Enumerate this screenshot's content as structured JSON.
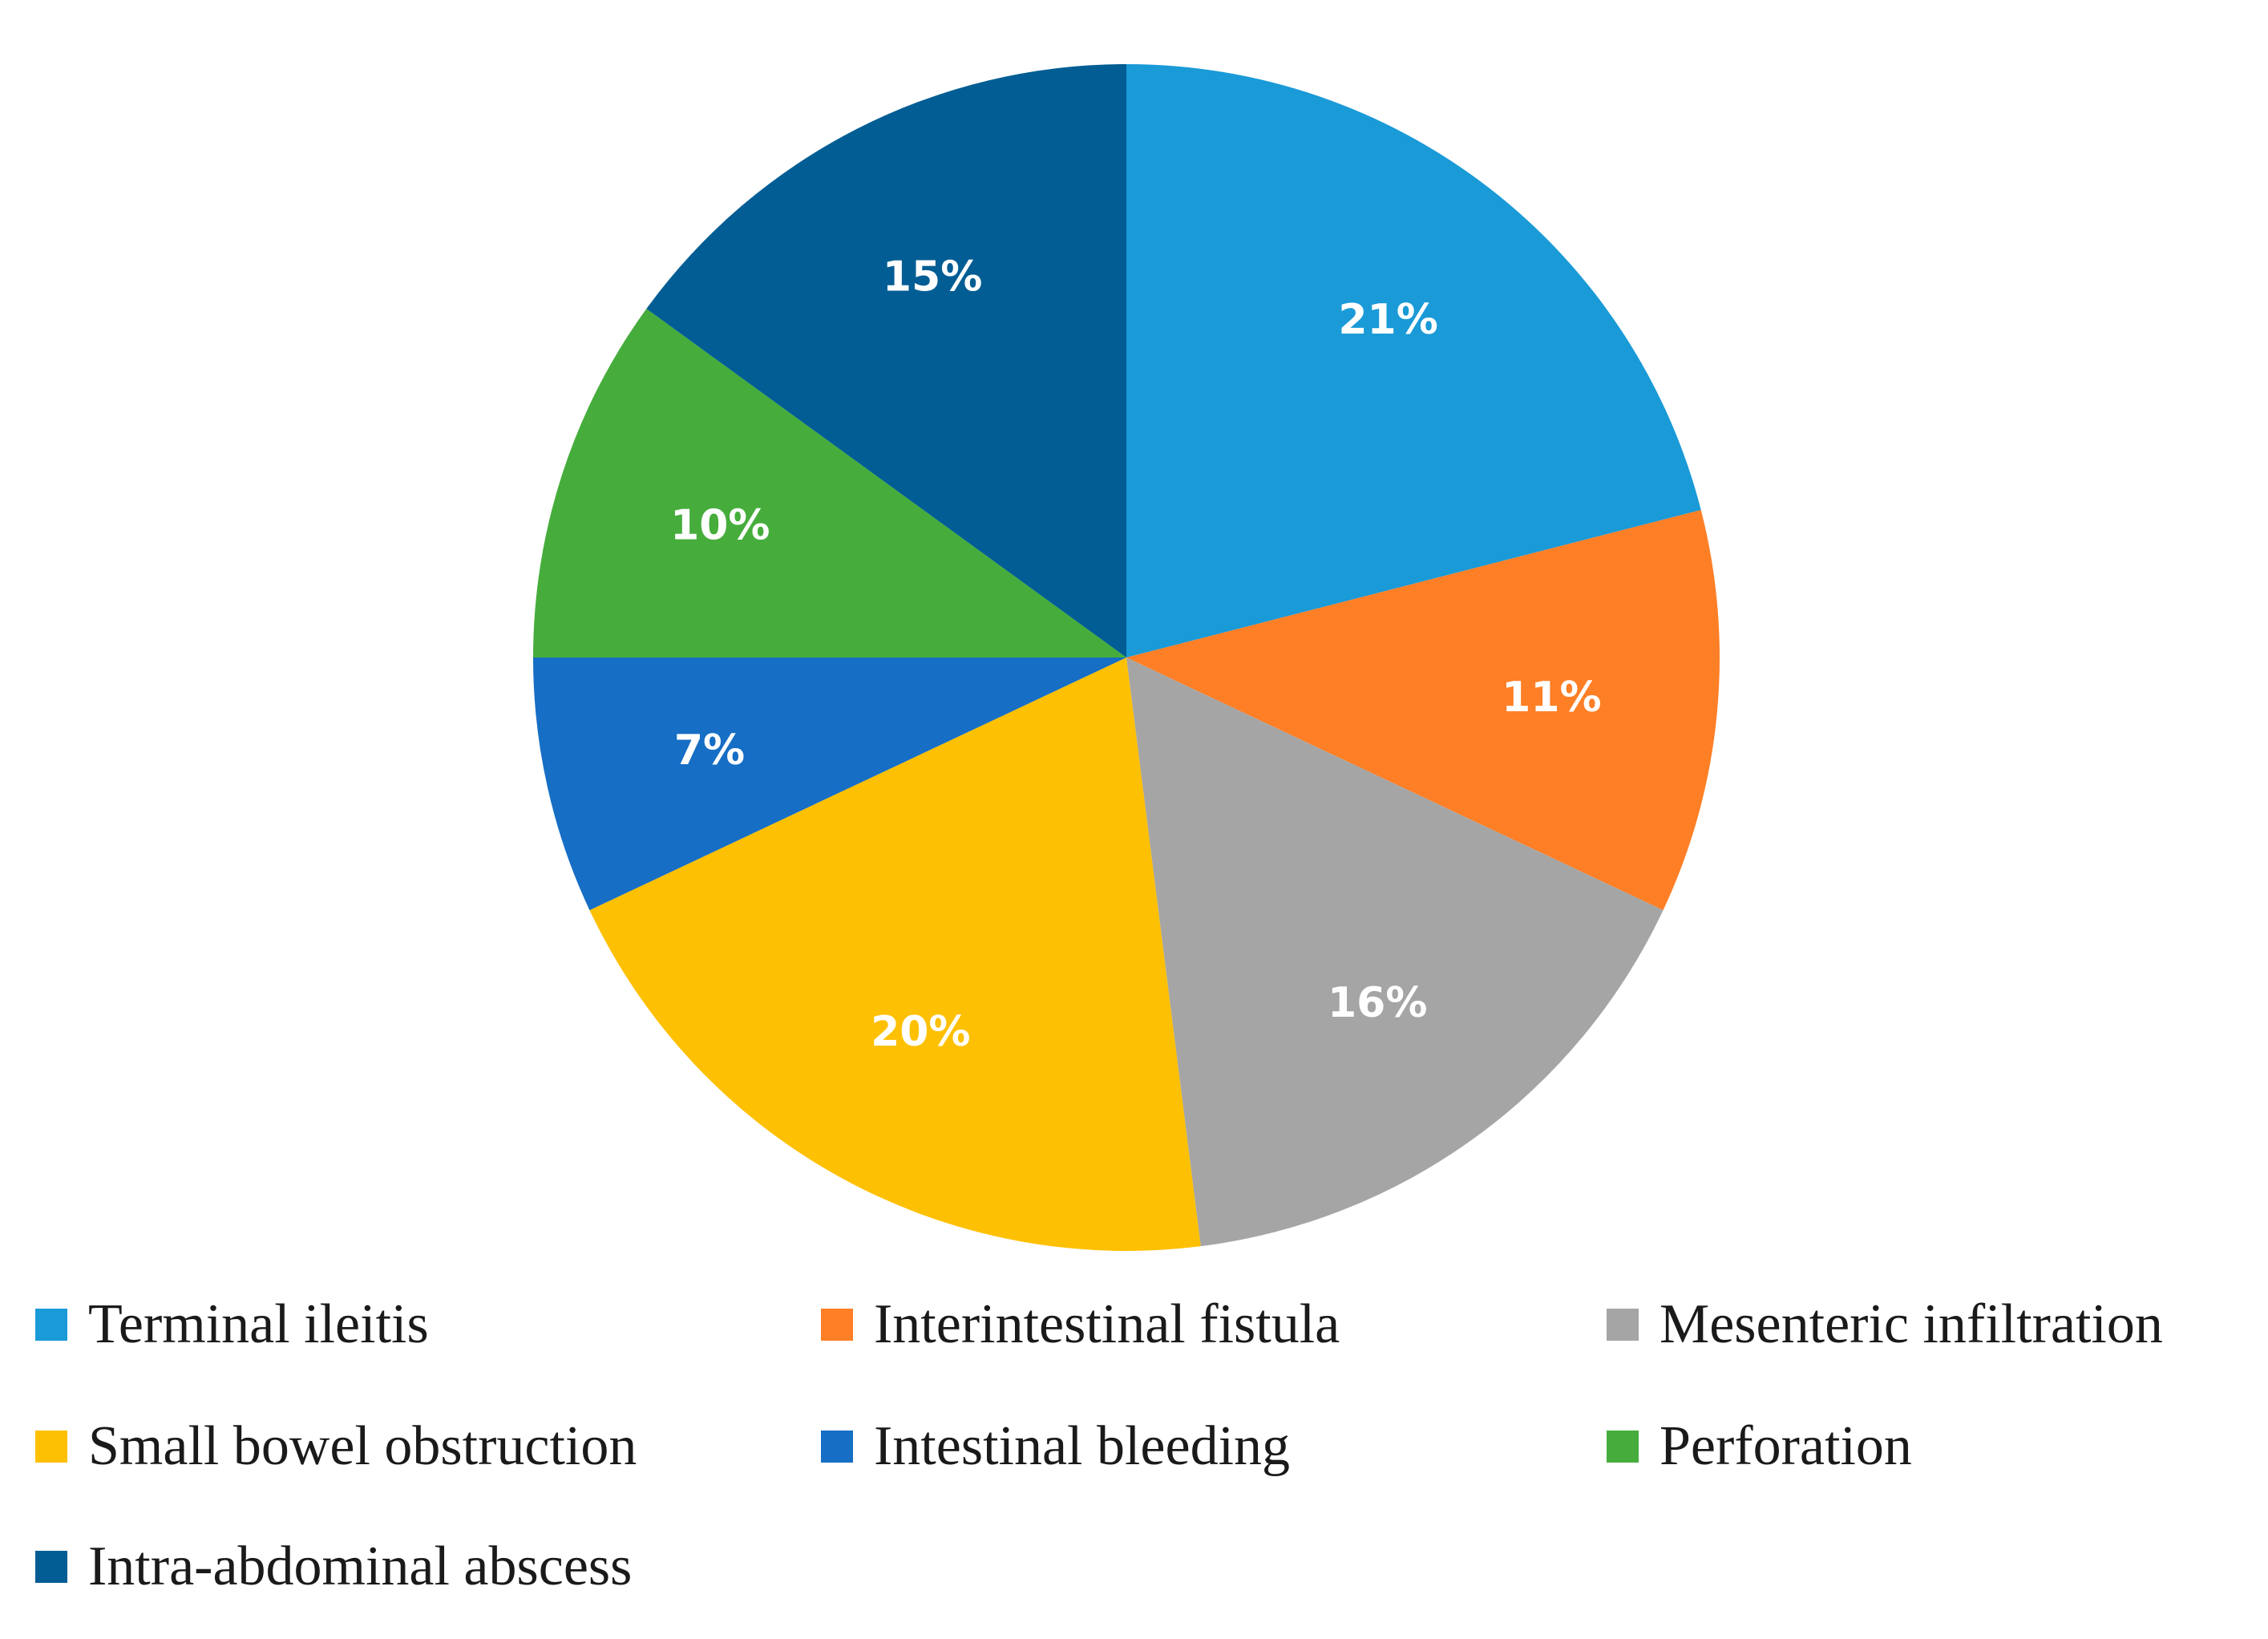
{
  "chart_data": {
    "type": "pie",
    "title": "",
    "start": "12 o'clock",
    "direction": "clockwise",
    "slices": [
      {
        "label": "Terminal ileitis",
        "value": 21,
        "display": "21%",
        "color": "#1a9ad7"
      },
      {
        "label": "Interintestinal fistula",
        "value": 11,
        "display": "11%",
        "color": "#fe7f26"
      },
      {
        "label": "Mesenteric infiltration",
        "value": 16,
        "display": "16%",
        "color": "#a5a5a5"
      },
      {
        "label": "Small bowel obstruction",
        "value": 20,
        "display": "20%",
        "color": "#fec002"
      },
      {
        "label": "Intestinal bleeding",
        "value": 7,
        "display": "7%",
        "color": "#166ec5"
      },
      {
        "label": "Perforation",
        "value": 10,
        "display": "10%",
        "color": "#46ad3c"
      },
      {
        "label": "Intra-abdominal abscess",
        "value": 15,
        "display": "15%",
        "color": "#015d94"
      }
    ],
    "legend_position": "bottom"
  }
}
